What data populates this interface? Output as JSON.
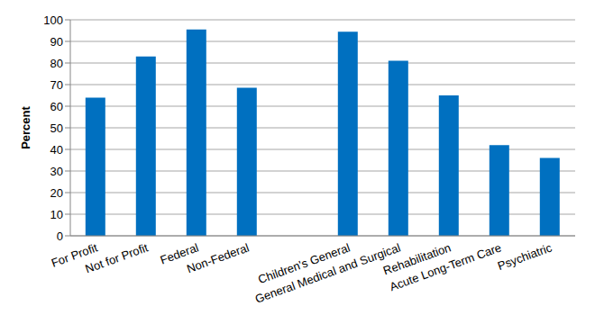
{
  "chart_data": {
    "type": "bar",
    "y_label": "Percent",
    "categories": [
      "For Profit",
      "Not for Profit",
      "Federal",
      "Non-Federal",
      null,
      "Children's General",
      "General Medical and Surgical",
      "Rehabilitation",
      "Acute Long-Term Care",
      "Psychiatric"
    ],
    "values": [
      64,
      83,
      95.5,
      68.5,
      null,
      94.5,
      81,
      65,
      42,
      36
    ],
    "color": "#0070c0",
    "ylim": [
      0,
      100
    ],
    "yticks": [
      0,
      10,
      20,
      30,
      40,
      50,
      60,
      70,
      80,
      90,
      100
    ],
    "grid": true
  }
}
